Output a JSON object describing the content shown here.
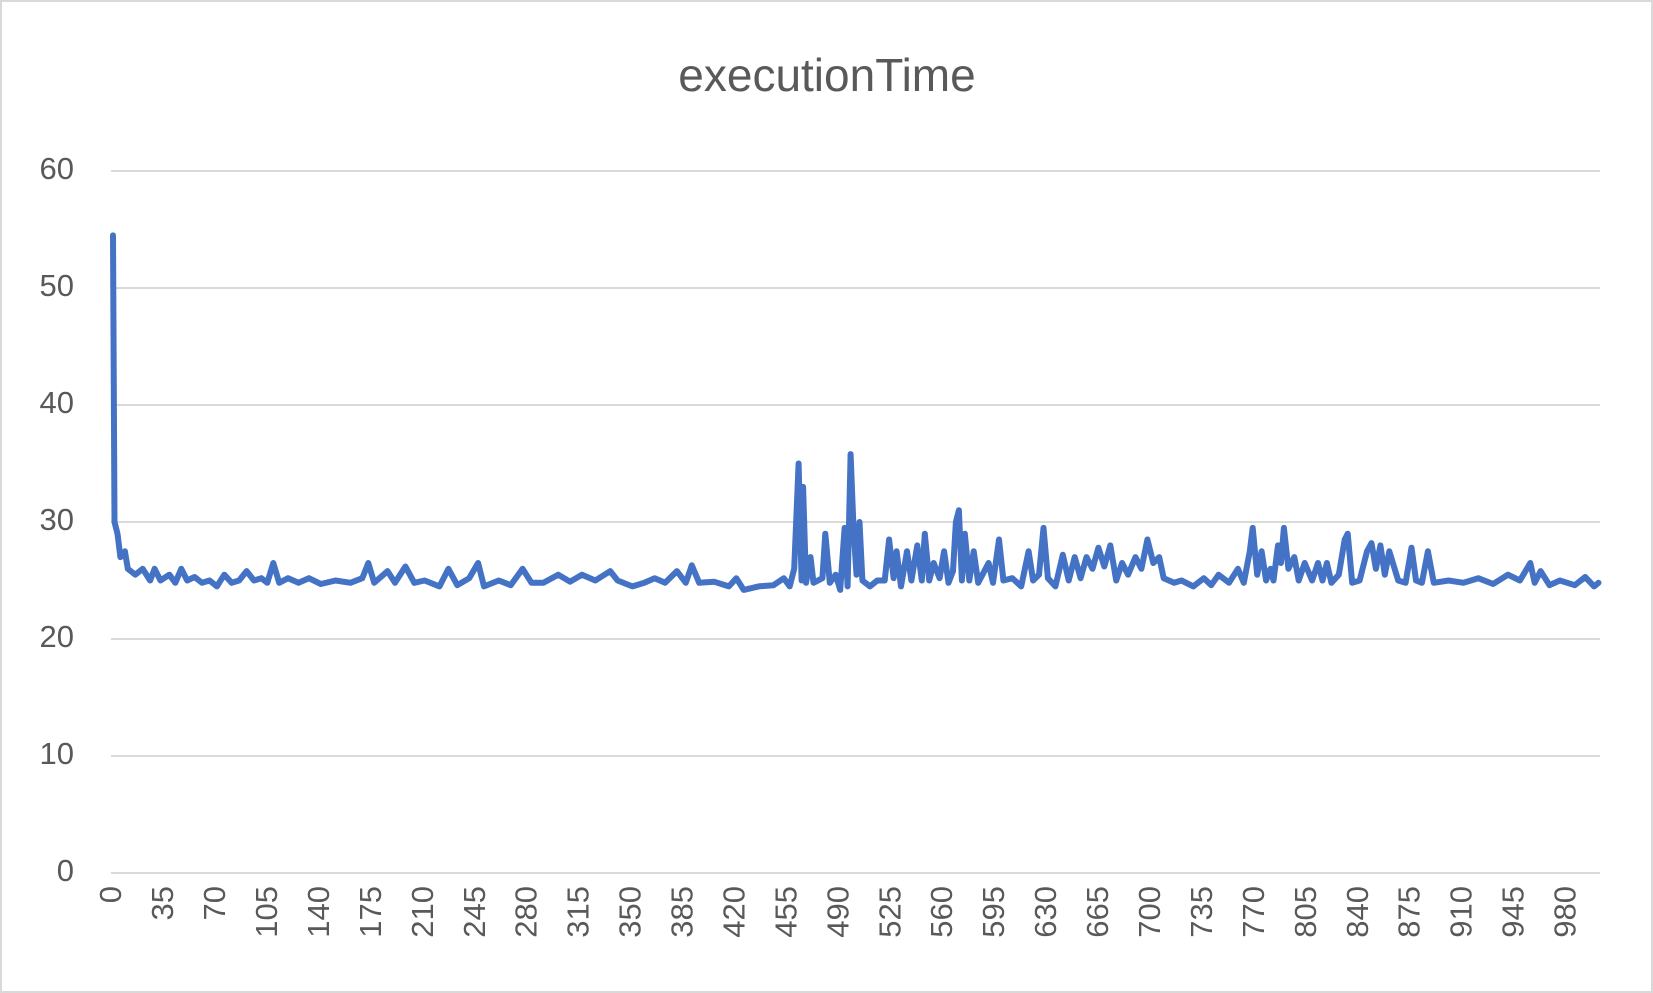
{
  "chart_data": {
    "type": "line",
    "title": "executionTime",
    "x": [
      0,
      1,
      3,
      5,
      8,
      10,
      15,
      20,
      25,
      28,
      32,
      38,
      42,
      46,
      50,
      55,
      60,
      65,
      70,
      75,
      80,
      85,
      90,
      95,
      100,
      104,
      108,
      112,
      118,
      125,
      132,
      140,
      150,
      160,
      168,
      172,
      176,
      185,
      190,
      197,
      203,
      210,
      220,
      226,
      232,
      240,
      246,
      250,
      260,
      268,
      276,
      282,
      290,
      300,
      308,
      316,
      325,
      335,
      340,
      350,
      358,
      365,
      372,
      380,
      386,
      390,
      395,
      405,
      415,
      420,
      425,
      435,
      445,
      452,
      456,
      459,
      462,
      464,
      465,
      467,
      470,
      472,
      478,
      480,
      483,
      487,
      490,
      493,
      495,
      497,
      499,
      501,
      503,
      505,
      510,
      515,
      520,
      523,
      526,
      528,
      531,
      535,
      538,
      542,
      545,
      547,
      550,
      553,
      557,
      560,
      563,
      566,
      568,
      570,
      572,
      574,
      577,
      580,
      583,
      590,
      593,
      597,
      600,
      606,
      612,
      617,
      620,
      624,
      627,
      630,
      635,
      640,
      644,
      648,
      652,
      656,
      660,
      664,
      668,
      672,
      676,
      680,
      684,
      689,
      693,
      697,
      701,
      705,
      708,
      715,
      720,
      728,
      735,
      740,
      745,
      752,
      758,
      762,
      766,
      768,
      771,
      774,
      777,
      780,
      782,
      785,
      787,
      789,
      792,
      796,
      799,
      803,
      808,
      812,
      815,
      818,
      821,
      826,
      830,
      832,
      835,
      840,
      845,
      848,
      851,
      854,
      857,
      860,
      866,
      871,
      875,
      878,
      882,
      886,
      890,
      900,
      910,
      920,
      930,
      940,
      948,
      955,
      958,
      962,
      968,
      975,
      985,
      992,
      998,
      1001
    ],
    "series": [
      {
        "name": "executionTime",
        "color": "#4472c4",
        "values": [
          54.5,
          30,
          29,
          27,
          27.5,
          26,
          25.5,
          26,
          25,
          26,
          25,
          25.5,
          24.8,
          26,
          25,
          25.3,
          24.8,
          25,
          24.5,
          25.5,
          24.8,
          25,
          25.8,
          25,
          25.2,
          24.8,
          26.5,
          24.8,
          25.2,
          24.8,
          25.2,
          24.7,
          25,
          24.8,
          25.2,
          26.5,
          24.8,
          25.8,
          24.8,
          26.2,
          24.8,
          25,
          24.5,
          26,
          24.6,
          25.2,
          26.5,
          24.5,
          25,
          24.6,
          26,
          24.8,
          24.8,
          25.5,
          24.9,
          25.5,
          25,
          25.8,
          25,
          24.5,
          24.8,
          25.2,
          24.8,
          25.8,
          24.8,
          26.3,
          24.8,
          24.9,
          24.5,
          25.2,
          24.2,
          24.5,
          24.6,
          25.2,
          24.5,
          26,
          35,
          25,
          33,
          24.8,
          27,
          24.8,
          25.2,
          29,
          24.8,
          25.5,
          24.2,
          29.5,
          24.5,
          35.8,
          29.5,
          25.5,
          30,
          25,
          24.5,
          25,
          25,
          28.5,
          25.2,
          27.5,
          24.5,
          27.5,
          25,
          28,
          25,
          29,
          25,
          26.5,
          25.2,
          27.5,
          24.8,
          25.8,
          30,
          31,
          25,
          29,
          25,
          27.5,
          24.8,
          26.5,
          24.8,
          28.5,
          25,
          25.2,
          24.5,
          27.5,
          25,
          25.5,
          29.5,
          25.2,
          24.5,
          27.2,
          25,
          27,
          25.2,
          27,
          26,
          27.8,
          26.2,
          28,
          25,
          26.5,
          25.5,
          27,
          26,
          28.5,
          26.5,
          27,
          25.2,
          24.8,
          25,
          24.5,
          25.2,
          24.6,
          25.5,
          24.8,
          26,
          24.8,
          27.5,
          29.5,
          25.5,
          27.5,
          25,
          26,
          25,
          28,
          26.5,
          29.5,
          26,
          27,
          25,
          26.5,
          25,
          26.5,
          25,
          26.5,
          24.8,
          25.5,
          28.5,
          29,
          24.8,
          25,
          27.5,
          28.2,
          26,
          28,
          25.5,
          27.5,
          25,
          24.8,
          27.8,
          25,
          24.8,
          27.5,
          24.8,
          25,
          24.8,
          25.2,
          24.7,
          25.5,
          25,
          26.5,
          24.8,
          25.8,
          24.6,
          25,
          24.6,
          25.3,
          24.5,
          24.8
        ]
      }
    ],
    "xlim": [
      0,
      1002
    ],
    "xticks": [
      0,
      35,
      70,
      105,
      140,
      175,
      210,
      245,
      280,
      315,
      350,
      385,
      420,
      455,
      490,
      525,
      560,
      595,
      630,
      665,
      700,
      735,
      770,
      805,
      840,
      875,
      910,
      945,
      980
    ],
    "ylim": [
      0,
      60
    ],
    "yticks": [
      0,
      10,
      20,
      30,
      40,
      50,
      60
    ],
    "grid": true
  }
}
